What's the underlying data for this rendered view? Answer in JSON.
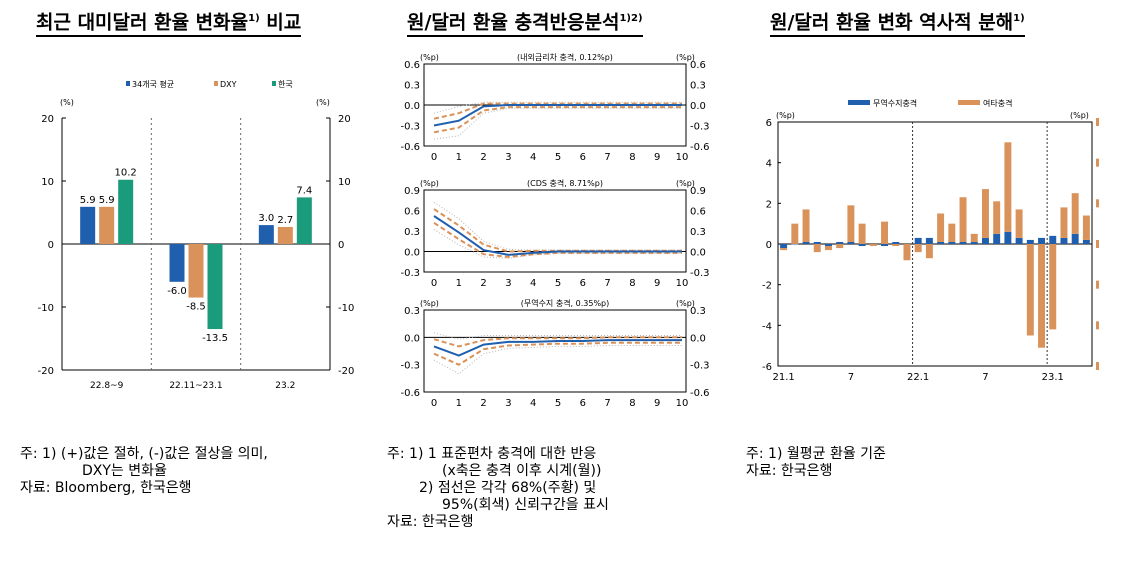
{
  "titles": {
    "left": "최근 대미달러 환율 변화율",
    "left_sup": "1)",
    "left_tail": " 비교",
    "middle": "원/달러 환율 충격반응분석",
    "middle_sup": "1)2)",
    "right": "원/달러 환율 변화 역사적 분해",
    "right_sup": "1)"
  },
  "notes": {
    "left": [
      "주: 1) (+)값은 절하, (-)값은 절상을 의미,",
      "DXY는 변화율",
      "자료: Bloomberg, 한국은행"
    ],
    "middle": [
      "주: 1) 1 표준편차 충격에 대한 반응",
      "(x축은 충격 이후 시계(월))",
      "2) 점선은 각각 68%(주황) 및",
      "95%(회색) 신뢰구간을 표시",
      "자료: 한국은행"
    ],
    "right": [
      "주: 1) 월평균 환율 기준",
      "자료: 한국은행"
    ]
  },
  "colors": {
    "blue": "#1f5fae",
    "orange": "#d9925a",
    "green": "#1a9b7c",
    "gray": "#b5b5b5"
  },
  "chart_data": [
    {
      "type": "bar",
      "unit": "(%)",
      "categories": [
        "22.8~9",
        "22.11~23.1",
        "23.2"
      ],
      "series": [
        {
          "name": "34개국 평균",
          "values": [
            5.9,
            -6.0,
            3.0
          ]
        },
        {
          "name": "DXY",
          "values": [
            5.9,
            -8.5,
            2.7
          ]
        },
        {
          "name": "한국",
          "values": [
            10.2,
            -13.5,
            7.4
          ]
        }
      ],
      "data_labels": [
        [
          "5.9",
          "-6.0",
          "3.0"
        ],
        [
          "5.9",
          "-8.5",
          "2.7"
        ],
        [
          "10.2",
          "-13.5",
          "7.4"
        ]
      ],
      "ylim": [
        -20,
        20
      ],
      "yticks": [
        -20,
        -10,
        0,
        10,
        20
      ],
      "legend": "top"
    },
    {
      "type": "line",
      "unit": "(%p)",
      "subtitle": "(내외금리차 충격, 0.12%p)",
      "x": [
        0,
        1,
        2,
        3,
        4,
        5,
        6,
        7,
        8,
        9,
        10
      ],
      "series": [
        {
          "name": "response",
          "values": [
            -0.3,
            -0.23,
            -0.02,
            0.0,
            0.0,
            0.0,
            0.0,
            0.0,
            0.0,
            0.0,
            0.0
          ]
        },
        {
          "name": "68% upper",
          "values": [
            -0.2,
            -0.12,
            0.02,
            0.02,
            0.02,
            0.02,
            0.02,
            0.02,
            0.02,
            0.02,
            0.02
          ]
        },
        {
          "name": "68% lower",
          "values": [
            -0.4,
            -0.33,
            -0.08,
            -0.03,
            -0.03,
            -0.03,
            -0.03,
            -0.03,
            -0.03,
            -0.03,
            -0.03
          ]
        },
        {
          "name": "95% upper",
          "values": [
            -0.12,
            -0.02,
            0.04,
            0.04,
            0.04,
            0.04,
            0.04,
            0.04,
            0.04,
            0.04,
            0.04
          ]
        },
        {
          "name": "95% lower",
          "values": [
            -0.5,
            -0.45,
            -0.12,
            -0.05,
            -0.05,
            -0.05,
            -0.05,
            -0.05,
            -0.05,
            -0.05,
            -0.05
          ]
        }
      ],
      "ylim": [
        -0.6,
        0.6
      ],
      "yticks": [
        -0.6,
        -0.3,
        0.0,
        0.3,
        0.6
      ],
      "ytick_labels": [
        "-0.6",
        "-0.3",
        "0.0",
        "0.3",
        "0.6"
      ]
    },
    {
      "type": "line",
      "unit": "(%p)",
      "subtitle": "(CDS 충격, 8.71%p)",
      "x": [
        0,
        1,
        2,
        3,
        4,
        5,
        6,
        7,
        8,
        9,
        10
      ],
      "series": [
        {
          "name": "response",
          "values": [
            0.52,
            0.28,
            0.02,
            -0.05,
            -0.02,
            0.0,
            0.0,
            0.0,
            0.0,
            0.0,
            0.0
          ]
        },
        {
          "name": "68% upper",
          "values": [
            0.62,
            0.38,
            0.1,
            0.0,
            0.01,
            0.01,
            0.01,
            0.01,
            0.01,
            0.01,
            0.01
          ]
        },
        {
          "name": "68% lower",
          "values": [
            0.42,
            0.18,
            -0.04,
            -0.08,
            -0.04,
            -0.02,
            -0.02,
            -0.02,
            -0.02,
            -0.02,
            -0.02
          ]
        },
        {
          "name": "95% upper",
          "values": [
            0.72,
            0.48,
            0.15,
            0.03,
            0.02,
            0.02,
            0.02,
            0.02,
            0.02,
            0.02,
            0.02
          ]
        },
        {
          "name": "95% lower",
          "values": [
            0.32,
            0.1,
            -0.08,
            -0.1,
            -0.05,
            -0.03,
            -0.03,
            -0.03,
            -0.03,
            -0.03,
            -0.03
          ]
        }
      ],
      "ylim": [
        -0.3,
        0.9
      ],
      "yticks": [
        -0.3,
        0.0,
        0.3,
        0.6,
        0.9
      ],
      "ytick_labels": [
        "-0.3",
        "0.0",
        "0.3",
        "0.6",
        "0.9"
      ]
    },
    {
      "type": "line",
      "unit": "(%p)",
      "subtitle": "(무역수지 충격, 0.35%p)",
      "x": [
        0,
        1,
        2,
        3,
        4,
        5,
        6,
        7,
        8,
        9,
        10
      ],
      "series": [
        {
          "name": "response",
          "values": [
            -0.1,
            -0.2,
            -0.08,
            -0.05,
            -0.05,
            -0.04,
            -0.04,
            -0.03,
            -0.03,
            -0.03,
            -0.03
          ]
        },
        {
          "name": "68% upper",
          "values": [
            -0.02,
            -0.1,
            -0.03,
            -0.01,
            -0.01,
            -0.01,
            -0.01,
            0.0,
            0.0,
            0.0,
            0.0
          ]
        },
        {
          "name": "68% lower",
          "values": [
            -0.18,
            -0.3,
            -0.13,
            -0.09,
            -0.08,
            -0.07,
            -0.07,
            -0.06,
            -0.06,
            -0.06,
            -0.06
          ]
        },
        {
          "name": "95% upper",
          "values": [
            0.05,
            -0.02,
            0.02,
            0.02,
            0.02,
            0.02,
            0.02,
            0.02,
            0.02,
            0.02,
            0.02
          ]
        },
        {
          "name": "95% lower",
          "values": [
            -0.25,
            -0.4,
            -0.18,
            -0.12,
            -0.11,
            -0.1,
            -0.1,
            -0.09,
            -0.09,
            -0.09,
            -0.09
          ]
        }
      ],
      "ylim": [
        -0.6,
        0.3
      ],
      "yticks": [
        -0.6,
        -0.3,
        0.0,
        0.3
      ],
      "ytick_labels": [
        "-0.6",
        "-0.3",
        "0.0",
        "0.3"
      ]
    },
    {
      "type": "bar",
      "unit": "(%p)",
      "categories": [
        "21.1",
        "",
        "",
        "",
        "",
        "",
        "7",
        "",
        "",
        "",
        "",
        "",
        "22.1",
        "",
        "",
        "",
        "",
        "",
        "7",
        "",
        "",
        "",
        "",
        "",
        "23.1",
        "",
        "",
        ""
      ],
      "xtick_labels": [
        "21.1",
        "7",
        "22.1",
        "7",
        "23.1"
      ],
      "series": [
        {
          "name": "무역수지충격",
          "values": [
            -0.2,
            0.0,
            0.1,
            0.1,
            -0.1,
            0.1,
            0.1,
            -0.1,
            0.0,
            -0.1,
            0.1,
            0.0,
            0.3,
            0.3,
            0.1,
            0.1,
            0.1,
            0.1,
            0.3,
            0.5,
            0.6,
            0.3,
            0.2,
            0.3,
            0.4,
            0.3,
            0.5,
            0.2
          ]
        },
        {
          "name": "여타충격",
          "values": [
            -0.1,
            1.0,
            1.6,
            -0.4,
            -0.2,
            -0.2,
            1.8,
            1.0,
            -0.1,
            1.1,
            -0.1,
            -0.8,
            -0.4,
            -0.7,
            1.4,
            0.9,
            2.2,
            0.4,
            2.4,
            1.6,
            4.4,
            1.4,
            -4.5,
            -5.1,
            -4.2,
            1.5,
            2.0,
            1.2
          ]
        }
      ],
      "ylim": [
        -6,
        6
      ],
      "yticks": [
        -6,
        -4,
        -2,
        0,
        2,
        4,
        6
      ],
      "legend": "top"
    }
  ]
}
